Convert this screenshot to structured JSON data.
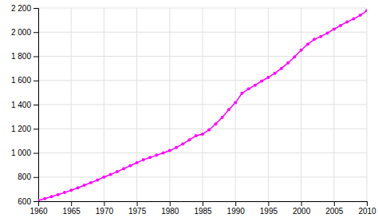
{
  "chart_data": {
    "type": "line",
    "x": [
      1960,
      1961,
      1962,
      1963,
      1964,
      1965,
      1966,
      1967,
      1968,
      1969,
      1970,
      1971,
      1972,
      1973,
      1974,
      1975,
      1976,
      1977,
      1978,
      1979,
      1980,
      1981,
      1982,
      1983,
      1984,
      1985,
      1986,
      1987,
      1988,
      1989,
      1990,
      1991,
      1992,
      1993,
      1994,
      1995,
      1996,
      1997,
      1998,
      1999,
      2000,
      2001,
      2002,
      2003,
      2004,
      2005,
      2006,
      2007,
      2008,
      2009,
      2010
    ],
    "values": [
      607,
      622,
      638,
      655,
      672,
      691,
      711,
      732,
      754,
      776,
      800,
      821,
      845,
      869,
      894,
      919,
      943,
      962,
      981,
      1000,
      1020,
      1044,
      1075,
      1108,
      1142,
      1155,
      1192,
      1240,
      1295,
      1358,
      1416,
      1494,
      1530,
      1561,
      1595,
      1625,
      1660,
      1700,
      1745,
      1795,
      1851,
      1900,
      1940,
      1964,
      1992,
      2025,
      2055,
      2085,
      2110,
      2140,
      2178
    ],
    "color": "#ff00ff",
    "marker": "circle",
    "xlim": [
      1960,
      2010
    ],
    "ylim": [
      600,
      2200
    ],
    "xticks": [
      1960,
      1965,
      1970,
      1975,
      1980,
      1985,
      1990,
      1995,
      2000,
      2005,
      2010
    ],
    "yticks": [
      600,
      800,
      {
        "value": 1000,
        "label": "1 000"
      },
      {
        "value": 1200,
        "label": "1 200"
      },
      {
        "value": 1400,
        "label": "1 400"
      },
      {
        "value": 1600,
        "label": "1 600"
      },
      {
        "value": 1800,
        "label": "1 800"
      },
      {
        "value": 2000,
        "label": "2 000"
      },
      {
        "value": 2200,
        "label": "2 200"
      }
    ],
    "grid": true
  }
}
